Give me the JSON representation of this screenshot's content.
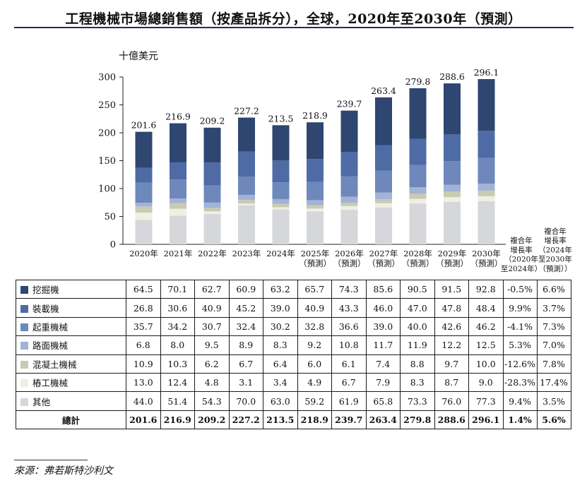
{
  "title": "工程機械市場總銷售額（按產品拆分），全球，2020年至2030年（預測）",
  "chart_data": {
    "type": "bar",
    "stacked": true,
    "unit_label": "十億美元",
    "ylim": [
      0,
      300
    ],
    "yticks": [
      0,
      50,
      100,
      150,
      200,
      250,
      300
    ],
    "categories": [
      [
        "2020年"
      ],
      [
        "2021年"
      ],
      [
        "2022年"
      ],
      [
        "2023年"
      ],
      [
        "2024年"
      ],
      [
        "2025年",
        "（預測）"
      ],
      [
        "2026年",
        "（預測）"
      ],
      [
        "2027年",
        "（預測）"
      ],
      [
        "2028年",
        "（預測）"
      ],
      [
        "2029年",
        "（預測）"
      ],
      [
        "2030年",
        "（預測）"
      ]
    ],
    "series": [
      {
        "name": "其他",
        "color": "#d6d7da",
        "values": [
          44.0,
          51.4,
          54.3,
          70.0,
          63.0,
          59.2,
          61.9,
          65.8,
          73.3,
          76.0,
          77.3
        ],
        "cagr": [
          "9.4%",
          "3.5%"
        ]
      },
      {
        "name": "樁工機械",
        "color": "#efefe4",
        "values": [
          13.0,
          12.4,
          4.8,
          3.1,
          3.4,
          4.9,
          6.7,
          7.9,
          8.3,
          8.7,
          9.0
        ],
        "cagr": [
          "-28.3%",
          "17.4%"
        ]
      },
      {
        "name": "混凝土機械",
        "color": "#c8cbb2",
        "values": [
          10.9,
          10.3,
          6.2,
          6.7,
          6.4,
          6.0,
          6.1,
          7.4,
          8.8,
          9.7,
          10.0
        ],
        "cagr": [
          "-12.6%",
          "7.8%"
        ]
      },
      {
        "name": "路面機械",
        "color": "#a3b2d6",
        "values": [
          6.8,
          8.0,
          9.5,
          8.9,
          8.3,
          9.2,
          10.8,
          11.7,
          11.9,
          12.2,
          12.5
        ],
        "cagr": [
          "5.3%",
          "7.0%"
        ]
      },
      {
        "name": "起重機械",
        "color": "#6e88bb",
        "values": [
          35.7,
          34.2,
          30.7,
          32.4,
          30.2,
          32.8,
          36.6,
          39.0,
          40.0,
          42.6,
          46.2
        ],
        "cagr": [
          "-4.1%",
          "7.3%"
        ]
      },
      {
        "name": "裝載機",
        "color": "#4f6ba6",
        "values": [
          26.8,
          30.6,
          40.9,
          45.2,
          39.0,
          40.9,
          43.3,
          46.0,
          47.0,
          47.8,
          48.4
        ],
        "cagr": [
          "9.9%",
          "3.7%"
        ]
      },
      {
        "name": "挖掘機",
        "color": "#2e4670",
        "values": [
          64.5,
          70.1,
          62.7,
          60.9,
          63.2,
          65.7,
          74.3,
          85.6,
          90.5,
          91.5,
          92.8
        ],
        "cagr": [
          "-0.5%",
          "6.6%"
        ]
      }
    ],
    "totals": [
      201.6,
      216.9,
      209.2,
      227.2,
      213.5,
      218.9,
      239.7,
      263.4,
      279.8,
      288.6,
      296.1
    ],
    "total_label": "總計",
    "total_cagr": [
      "1.4%",
      "5.6%"
    ],
    "cagr_headers": [
      [
        "複合年",
        "增長率",
        "（2020年",
        "至2024年）"
      ],
      [
        "複合年",
        "增長率",
        "（2024年",
        "至2030年",
        "（預測））"
      ]
    ]
  },
  "source": "來源：弗若斯特沙利文"
}
